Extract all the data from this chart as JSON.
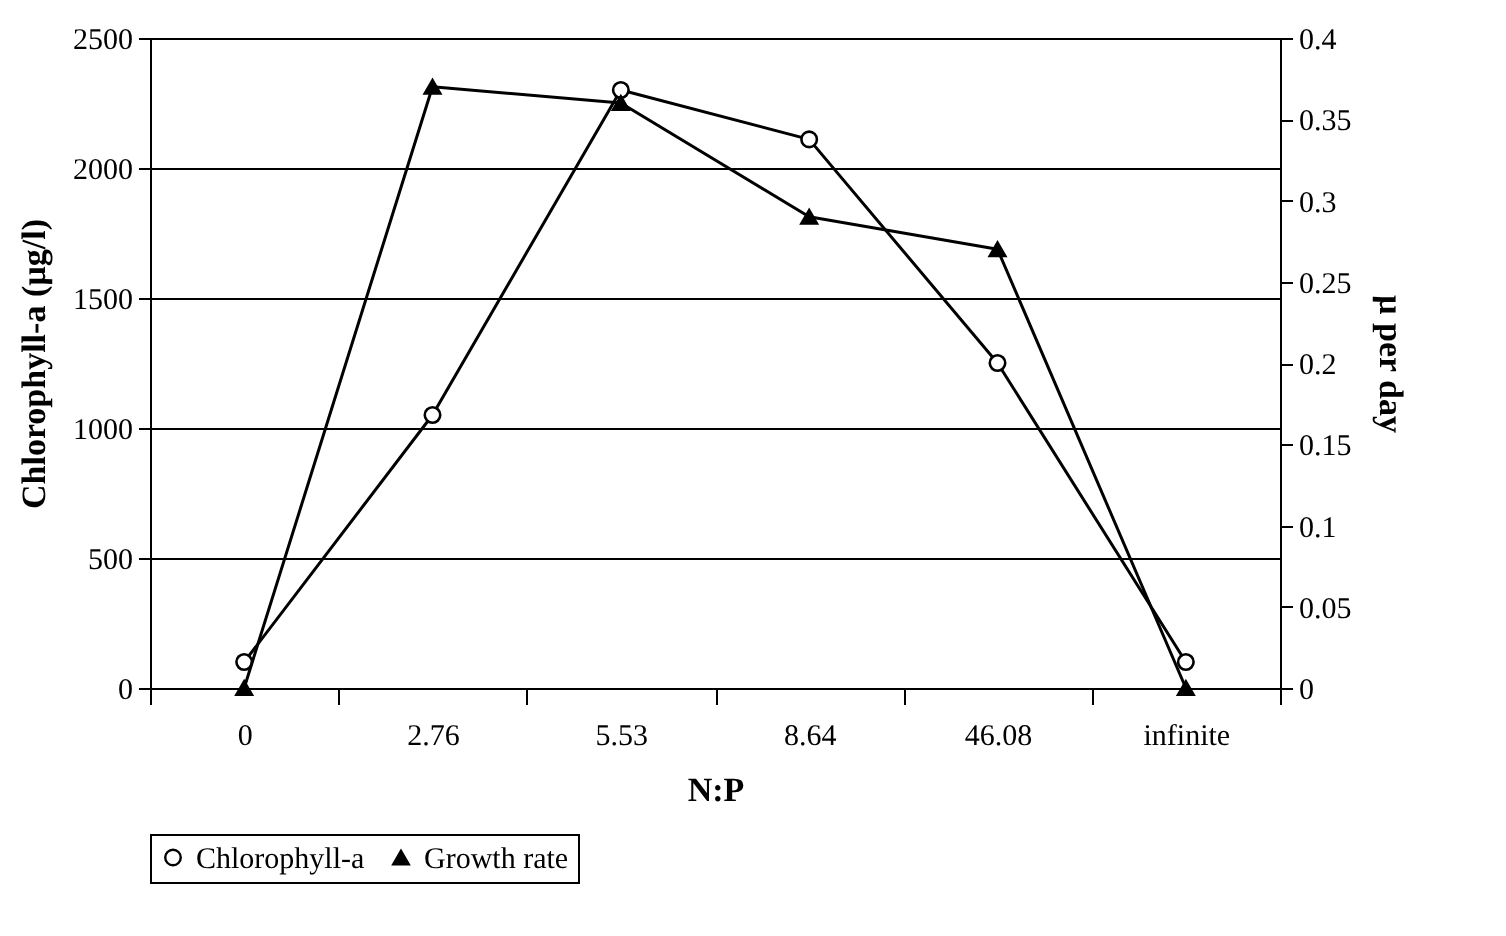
{
  "chart_data": {
    "type": "line",
    "xlabel": "N:P",
    "ylabel": "Chlorophyll-a  (µg/l)",
    "y2label": "µ per day",
    "categories": [
      "0",
      "2.76",
      "5.53",
      "8.64",
      "46.08",
      "infinite"
    ],
    "series": [
      {
        "name": "Chlorophyll-a",
        "color": "#000000",
        "marker": "circle",
        "values": [
          100,
          1050,
          2300,
          2110,
          1250,
          100
        ]
      },
      {
        "name": "Growth rate",
        "color": "#000000",
        "marker": "triangle",
        "axis": "y2",
        "values": [
          0,
          0.37,
          0.36,
          0.29,
          0.27,
          0
        ]
      }
    ],
    "ylim": [
      0,
      2500
    ],
    "yticks": [
      0,
      500,
      1000,
      1500,
      2000,
      2500
    ],
    "y2lim": [
      0,
      0.4
    ],
    "y2ticks": [
      0,
      0.05,
      0.1,
      0.15,
      0.2,
      0.25,
      0.3,
      0.35,
      0.4
    ],
    "grid": "y",
    "legend": "bottom"
  }
}
